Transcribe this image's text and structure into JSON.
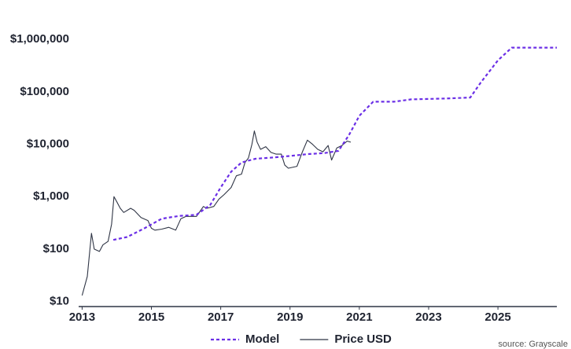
{
  "chart_data": {
    "type": "line",
    "log_scale": true,
    "grid": false,
    "legend": "bottom",
    "source": "source: Grayscale",
    "xlim": [
      2012.9,
      2026.7
    ],
    "xticks": [
      2013,
      2015,
      2017,
      2019,
      2021,
      2023,
      2025
    ],
    "ylim": [
      8,
      1200000
    ],
    "yticks": [
      {
        "value": 10,
        "label": "$10"
      },
      {
        "value": 100,
        "label": "$100"
      },
      {
        "value": 1000,
        "label": "$1,000"
      },
      {
        "value": 10000,
        "label": "$10,000"
      },
      {
        "value": 100000,
        "label": "$100,000"
      },
      {
        "value": 1000000,
        "label": "$1,000,000"
      }
    ],
    "series": [
      {
        "name": "Model",
        "color": "#6b2fe6",
        "dashed": true,
        "x": [
          2013.9,
          2014.3,
          2014.8,
          2015.3,
          2015.8,
          2016.3,
          2016.7,
          2017.0,
          2017.3,
          2017.6,
          2018.0,
          2018.5,
          2019.0,
          2019.5,
          2020.0,
          2020.4,
          2020.7,
          2021.0,
          2021.4,
          2022.0,
          2022.5,
          2023.5,
          2024.2,
          2024.5,
          2025.0,
          2025.4,
          2026.7
        ],
        "values": [
          150,
          170,
          250,
          380,
          430,
          450,
          700,
          1500,
          3000,
          4500,
          5300,
          5600,
          6000,
          6500,
          6800,
          7500,
          15000,
          35000,
          65000,
          65000,
          72000,
          75000,
          78000,
          150000,
          400000,
          700000,
          700000
        ]
      },
      {
        "name": "Price USD",
        "color": "#2f3545",
        "dashed": false,
        "x": [
          2013.0,
          2013.15,
          2013.27,
          2013.35,
          2013.5,
          2013.6,
          2013.75,
          2013.85,
          2013.92,
          2014.0,
          2014.1,
          2014.2,
          2014.4,
          2014.5,
          2014.7,
          2014.9,
          2015.0,
          2015.1,
          2015.3,
          2015.5,
          2015.7,
          2015.85,
          2016.0,
          2016.3,
          2016.5,
          2016.6,
          2016.8,
          2016.95,
          2017.1,
          2017.3,
          2017.45,
          2017.6,
          2017.7,
          2017.8,
          2017.9,
          2017.97,
          2018.05,
          2018.15,
          2018.3,
          2018.45,
          2018.6,
          2018.75,
          2018.85,
          2018.95,
          2019.2,
          2019.35,
          2019.5,
          2019.65,
          2019.8,
          2019.95,
          2020.1,
          2020.2,
          2020.35,
          2020.5,
          2020.65,
          2020.75
        ],
        "values": [
          13,
          30,
          200,
          100,
          90,
          120,
          140,
          300,
          1000,
          800,
          600,
          500,
          600,
          550,
          400,
          350,
          250,
          230,
          240,
          260,
          230,
          380,
          420,
          420,
          650,
          600,
          650,
          900,
          1100,
          1500,
          2500,
          2700,
          4500,
          5500,
          10000,
          18000,
          11000,
          8000,
          9000,
          7000,
          6500,
          6500,
          4000,
          3500,
          3800,
          7000,
          12000,
          10000,
          8000,
          7200,
          9500,
          5000,
          8500,
          9500,
          11500,
          11000
        ]
      }
    ]
  }
}
